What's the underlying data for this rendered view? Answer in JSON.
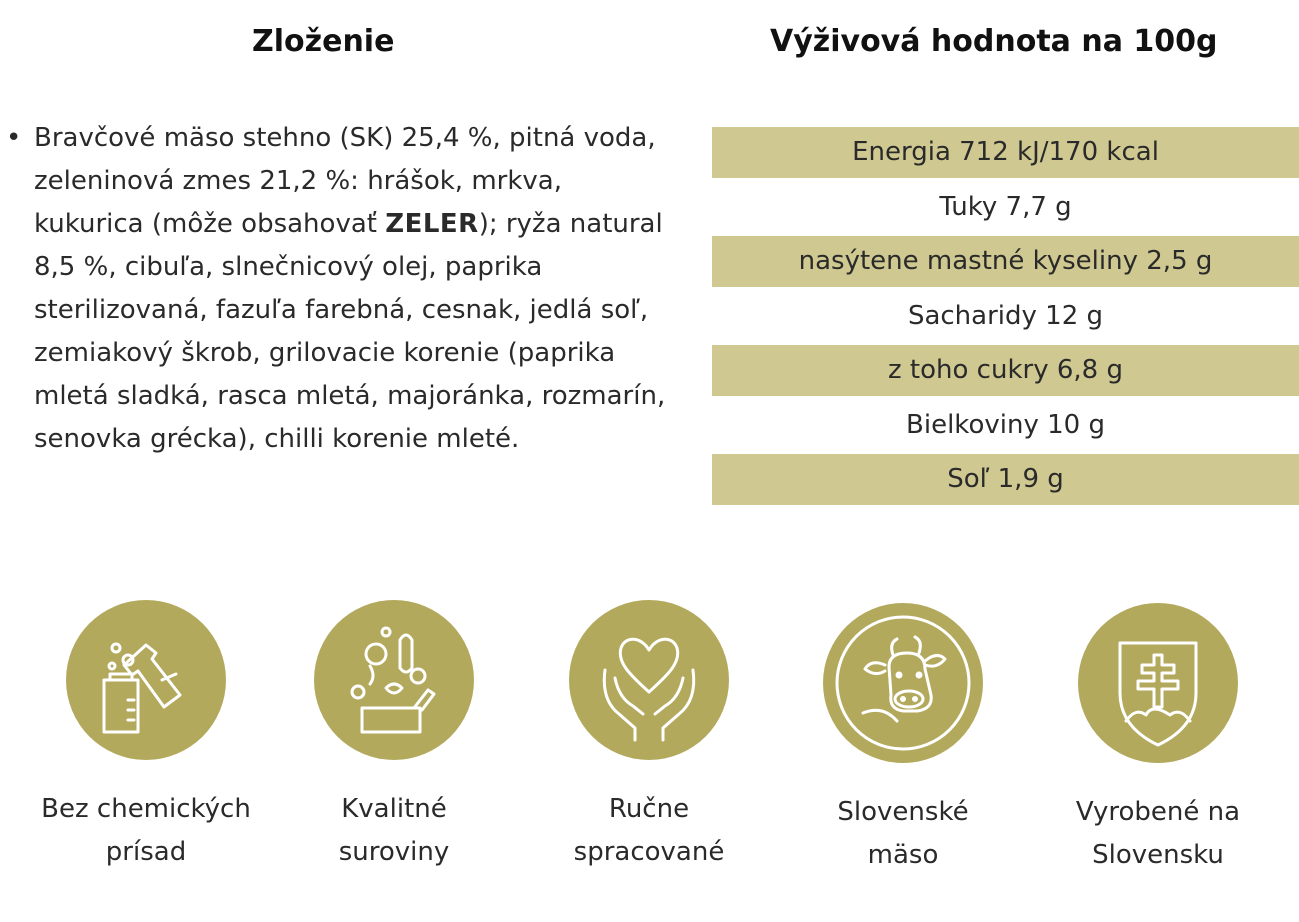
{
  "headings": {
    "ingredients": "Zloženie",
    "nutrition": "Výživová hodnota na 100g"
  },
  "ingredients": {
    "before_allergen": "Bravčové mäso stehno (SK) 25,4 %, pitná voda, zeleninová zmes 21,2 %: hrášok, mrkva, kukurica (môže obsahovať ",
    "allergen": "ZELER",
    "after_allergen": "); ryža natural 8,5 %, cibuľa, slnečnicový olej, paprika sterilizovaná, fazuľa farebná, cesnak, jedlá soľ, zemiakový škrob, grilovacie korenie (paprika mletá sladká, rasca mletá, majoránka, rozmarín, senovka grécka), chilli korenie mleté."
  },
  "nutrition": [
    "Energia 712 kJ/170 kcal",
    "Tuky 7,7 g",
    "nasýtene mastné kyseliny 2,5 g",
    "Sacharidy 12 g",
    "z toho cukry 6,8 g",
    "Bielkoviny 10 g",
    "Soľ 1,9 g"
  ],
  "features": [
    {
      "icon": "lab-flask-icon",
      "line1": "Bez chemických",
      "line2": "prísad"
    },
    {
      "icon": "vegetables-icon",
      "line1": "Kvalitné",
      "line2": "suroviny"
    },
    {
      "icon": "heart-hands-icon",
      "line1": "Ručne",
      "line2": "spracované"
    },
    {
      "icon": "cow-icon",
      "line1": "Slovenské",
      "line2": "mäso"
    },
    {
      "icon": "slovak-shield-icon",
      "line1": "Vyrobené na",
      "line2": "Slovensku"
    }
  ],
  "colors": {
    "accent_circle": "#b3a95d",
    "table_shade": "#cfc891"
  }
}
